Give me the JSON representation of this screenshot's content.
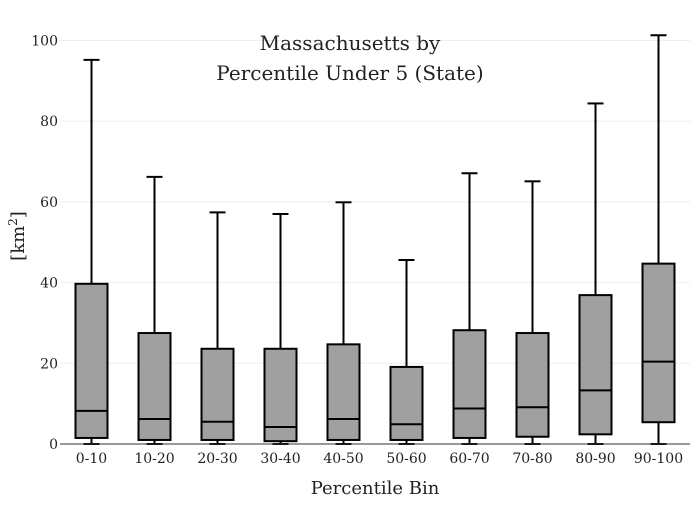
{
  "chart_data": {
    "type": "box",
    "title_line1": "Massachusetts  by",
    "title_line2": "Percentile Under 5 (State)",
    "xlabel": "Percentile Bin",
    "ylabel_base": "[km",
    "ylabel_sup": "2",
    "ylabel_close": "]",
    "ylim": [
      0,
      103
    ],
    "yticks": [
      0,
      20,
      40,
      60,
      80,
      100
    ],
    "grid": true,
    "box_color": "#a0a0a0",
    "categories": [
      "0-10",
      "10-20",
      "20-30",
      "30-40",
      "40-50",
      "50-60",
      "60-70",
      "70-80",
      "80-90",
      "90-100"
    ],
    "boxes": [
      {
        "min": 0,
        "q1": 1.5,
        "median": 8.2,
        "q3": 39.7,
        "max": 95.2
      },
      {
        "min": 0,
        "q1": 1.0,
        "median": 6.2,
        "q3": 27.5,
        "max": 66.2
      },
      {
        "min": 0,
        "q1": 1.0,
        "median": 5.5,
        "q3": 23.6,
        "max": 57.4
      },
      {
        "min": 0,
        "q1": 0.7,
        "median": 4.2,
        "q3": 23.6,
        "max": 57.0
      },
      {
        "min": 0,
        "q1": 1.0,
        "median": 6.2,
        "q3": 24.7,
        "max": 59.9
      },
      {
        "min": 0,
        "q1": 1.0,
        "median": 4.9,
        "q3": 19.1,
        "max": 45.6
      },
      {
        "min": 0,
        "q1": 1.5,
        "median": 8.8,
        "q3": 28.2,
        "max": 67.1
      },
      {
        "min": 0,
        "q1": 1.8,
        "median": 9.1,
        "q3": 27.5,
        "max": 65.1
      },
      {
        "min": 0,
        "q1": 2.4,
        "median": 13.3,
        "q3": 36.9,
        "max": 84.4
      },
      {
        "min": 0,
        "q1": 5.4,
        "median": 20.4,
        "q3": 44.7,
        "max": 101.3
      }
    ]
  }
}
